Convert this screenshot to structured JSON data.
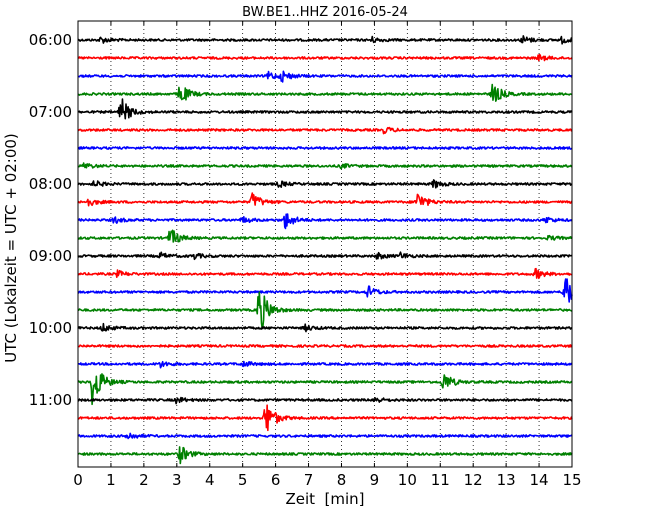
{
  "chart_data": {
    "type": "line",
    "title": "BW.BE1..HHZ 2016-05-24",
    "xlabel": "Zeit  [min]",
    "ylabel": "UTC (Lokalzeit = UTC + 02:00)",
    "xlim": [
      0,
      15
    ],
    "x_ticks": [
      "0",
      "1",
      "2",
      "3",
      "4",
      "5",
      "6",
      "7",
      "8",
      "9",
      "10",
      "11",
      "12",
      "13",
      "14",
      "15"
    ],
    "hour_labels": [
      "06:00",
      "07:00",
      "08:00",
      "09:00",
      "10:00",
      "11:00"
    ],
    "grid": "vertical dotted at each minute",
    "trace_colors": [
      "#000000",
      "#ff0000",
      "#0000ff",
      "#008000"
    ],
    "traces": [
      {
        "start": "06:00",
        "events": [
          {
            "t": 0.7,
            "a": 3
          },
          {
            "t": 8.9,
            "a": 3
          },
          {
            "t": 13.5,
            "a": 4
          },
          {
            "t": 14.7,
            "a": 3
          }
        ]
      },
      {
        "start": "06:15",
        "events": [
          {
            "t": 14.0,
            "a": 3
          }
        ]
      },
      {
        "start": "06:30",
        "events": [
          {
            "t": 5.8,
            "a": 4
          },
          {
            "t": 6.2,
            "a": 5
          }
        ]
      },
      {
        "start": "06:45",
        "events": [
          {
            "t": 3.1,
            "a": 11
          },
          {
            "t": 12.6,
            "a": 11
          }
        ]
      },
      {
        "start": "07:00",
        "events": [
          {
            "t": 1.3,
            "a": 15
          }
        ]
      },
      {
        "start": "07:15",
        "events": [
          {
            "t": 9.3,
            "a": 3
          }
        ]
      },
      {
        "start": "07:30",
        "events": []
      },
      {
        "start": "07:45",
        "events": [
          {
            "t": 0.2,
            "a": 3
          },
          {
            "t": 8.0,
            "a": 2
          }
        ]
      },
      {
        "start": "08:00",
        "events": [
          {
            "t": 0.5,
            "a": 3
          },
          {
            "t": 6.1,
            "a": 3
          },
          {
            "t": 10.8,
            "a": 4
          },
          {
            "t": 15.0,
            "a": 3
          }
        ]
      },
      {
        "start": "08:15",
        "events": [
          {
            "t": 0.3,
            "a": 4
          },
          {
            "t": 5.3,
            "a": 9
          },
          {
            "t": 10.3,
            "a": 10
          }
        ]
      },
      {
        "start": "08:30",
        "events": [
          {
            "t": 1.1,
            "a": 3
          },
          {
            "t": 5.0,
            "a": 3
          },
          {
            "t": 6.3,
            "a": 9
          },
          {
            "t": 14.2,
            "a": 3
          }
        ]
      },
      {
        "start": "08:45",
        "events": [
          {
            "t": 2.8,
            "a": 10
          },
          {
            "t": 14.3,
            "a": 2
          }
        ]
      },
      {
        "start": "09:00",
        "events": [
          {
            "t": 2.5,
            "a": 3
          },
          {
            "t": 3.5,
            "a": 3
          },
          {
            "t": 9.1,
            "a": 3
          },
          {
            "t": 9.8,
            "a": 3
          }
        ]
      },
      {
        "start": "09:15",
        "events": [
          {
            "t": 1.2,
            "a": 3
          },
          {
            "t": 13.9,
            "a": 5
          }
        ]
      },
      {
        "start": "09:30",
        "events": [
          {
            "t": 8.8,
            "a": 6
          },
          {
            "t": 14.8,
            "a": 22
          }
        ]
      },
      {
        "start": "09:45",
        "events": [
          {
            "t": 5.5,
            "a": 26
          }
        ]
      },
      {
        "start": "10:00",
        "events": [
          {
            "t": 0.75,
            "a": 4
          },
          {
            "t": 6.9,
            "a": 3
          }
        ]
      },
      {
        "start": "10:15",
        "events": []
      },
      {
        "start": "10:30",
        "events": [
          {
            "t": 2.5,
            "a": 3
          },
          {
            "t": 5.0,
            "a": 3
          }
        ]
      },
      {
        "start": "10:45",
        "events": [
          {
            "t": 0.45,
            "a": 26
          },
          {
            "t": 11.1,
            "a": 10
          }
        ]
      },
      {
        "start": "11:00",
        "events": [
          {
            "t": 3.0,
            "a": 3
          },
          {
            "t": 9.0,
            "a": 3
          }
        ]
      },
      {
        "start": "11:15",
        "events": [
          {
            "t": 5.7,
            "a": 19
          }
        ]
      },
      {
        "start": "11:30",
        "events": [
          {
            "t": 1.5,
            "a": 4
          }
        ]
      },
      {
        "start": "11:45",
        "events": [
          {
            "t": 3.1,
            "a": 9
          }
        ]
      }
    ]
  }
}
